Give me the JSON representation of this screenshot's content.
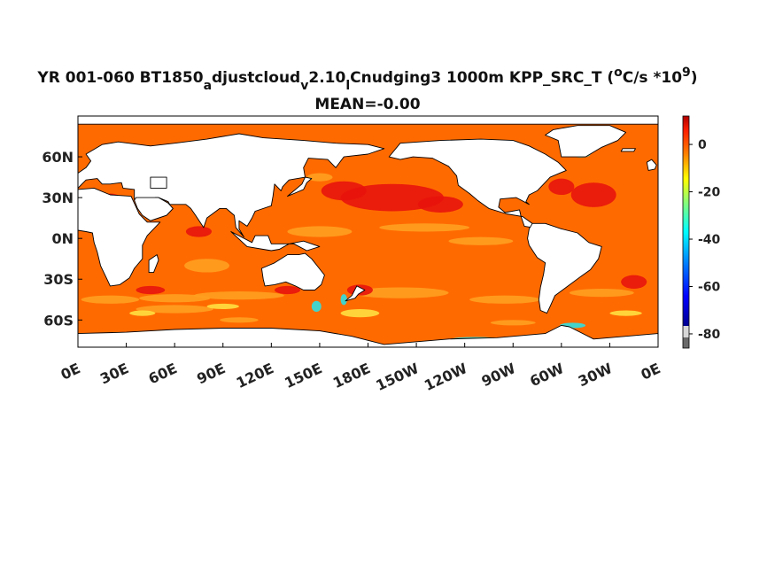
{
  "chart_data": {
    "type": "heatmap",
    "title_parts": {
      "a": "YR 001-060 BT1850",
      "sub1": "a",
      "b": "djustcloud",
      "sub2": "v",
      "c": "2.10",
      "sub3": "l",
      "d": "Cnudging3 1000m KPP_SRC_T (",
      "sup1": "o",
      "e": "C/s *10",
      "sup2": "9",
      "f": ")"
    },
    "subtitle": "MEAN=-0.00",
    "x_ticks": [
      "0E",
      "30E",
      "60E",
      "90E",
      "120E",
      "150E",
      "180E",
      "150W",
      "120W",
      "90W",
      "60W",
      "30W",
      "0E"
    ],
    "x_tick_lon": [
      0,
      30,
      60,
      90,
      120,
      150,
      180,
      210,
      240,
      270,
      300,
      330,
      360
    ],
    "y_ticks": [
      "60N",
      "30N",
      "0N",
      "30S",
      "60S"
    ],
    "y_tick_lat": [
      60,
      30,
      0,
      -30,
      -60
    ],
    "xlim": [
      0,
      360
    ],
    "ylim": [
      -80,
      90
    ],
    "colorbar": {
      "ticks": [
        "0",
        "-20",
        "-40",
        "-60",
        "-80"
      ],
      "tick_values": [
        0,
        -20,
        -40,
        -60,
        -80
      ],
      "range": [
        -86,
        12
      ]
    },
    "colors": {
      "ocean_base": "#ff6a00",
      "strong_red": "#e8140c",
      "light_orange": "#ffa020",
      "yellow": "#ffe040",
      "cyan": "#30e0e0",
      "blue": "#2050ff",
      "land": "#ffffff",
      "coast": "#000000"
    }
  }
}
